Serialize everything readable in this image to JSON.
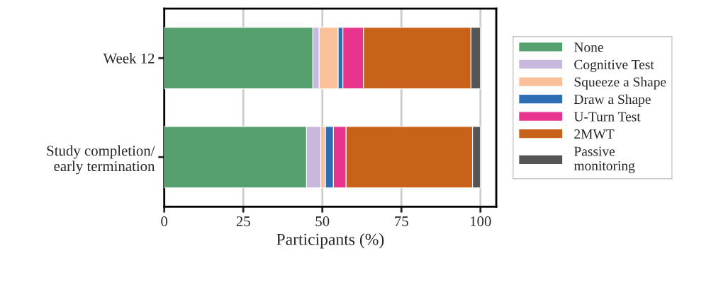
{
  "chart_data": {
    "type": "bar",
    "orientation": "horizontal",
    "stacked": true,
    "categories": [
      "Week 12",
      "Study completion/\nearly termination"
    ],
    "xlabel": "Participants (%)",
    "xlim": [
      0,
      105
    ],
    "xticks": [
      0,
      25,
      50,
      75,
      100
    ],
    "grid": "x",
    "legend": "right",
    "series": [
      {
        "name": "None",
        "color": "#55a06e",
        "values": [
          47,
          45
        ]
      },
      {
        "name": "Cognitive Test",
        "color": "#c9b8de",
        "values": [
          2,
          4.5
        ]
      },
      {
        "name": "Squeeze a Shape",
        "color": "#f9c09a",
        "values": [
          6,
          1.5
        ]
      },
      {
        "name": "Draw a Shape",
        "color": "#2f6db5",
        "values": [
          1.5,
          2.5
        ]
      },
      {
        "name": "U-Turn Test",
        "color": "#e8348e",
        "values": [
          6.5,
          4
        ]
      },
      {
        "name": "2MWT",
        "color": "#c8621a",
        "values": [
          34,
          40
        ]
      },
      {
        "name": "Passive\nmonitoring",
        "color": "#555555",
        "values": [
          3,
          2.5
        ]
      }
    ]
  }
}
